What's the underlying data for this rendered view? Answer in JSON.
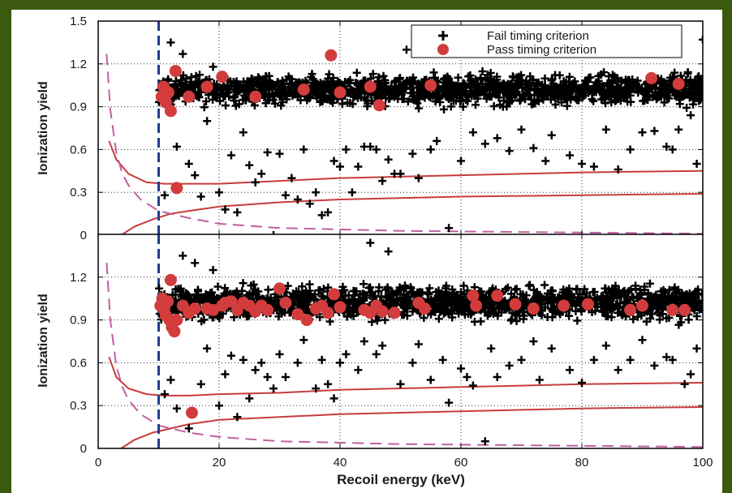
{
  "chart_data": [
    {
      "type": "scatter",
      "panel": "top",
      "ylabel": "Ionization yield",
      "xlim": [
        0,
        100
      ],
      "ylim": [
        0,
        1.5
      ],
      "xticks": [
        "0",
        "20",
        "40",
        "60",
        "80",
        "100"
      ],
      "yticks": [
        "0",
        "0.3",
        "0.6",
        "0.9",
        "1.2",
        "1.5"
      ],
      "grid": true,
      "legend": {
        "placement": "top-right",
        "entries": [
          {
            "label": "Fail timing criterion",
            "marker": "plus",
            "color": "#000000"
          },
          {
            "label": "Pass timing criterion",
            "marker": "circle",
            "color": "#d23c3c"
          }
        ]
      },
      "series": [
        {
          "name": "Fail timing criterion",
          "marker": "plus",
          "color": "#000000",
          "x_range": [
            10,
            100
          ],
          "band_center": 1.02,
          "band_halfwidth": 0.09,
          "points": [
            [
              12,
              1.35
            ],
            [
              14,
              1.27
            ],
            [
              19,
              1.18
            ],
            [
              22,
              0.56
            ],
            [
              25,
              0.49
            ],
            [
              27,
              0.43
            ],
            [
              30,
              0.57
            ],
            [
              32,
              0.4
            ],
            [
              34,
              0.6
            ],
            [
              35,
              0.22
            ],
            [
              37,
              0.14
            ],
            [
              38,
              0.16
            ],
            [
              39,
              0.52
            ],
            [
              40,
              0.48
            ],
            [
              41,
              0.6
            ],
            [
              43,
              0.48
            ],
            [
              44,
              0.62
            ],
            [
              46,
              0.6
            ],
            [
              48,
              0.53
            ],
            [
              50,
              0.43
            ],
            [
              51,
              1.3
            ],
            [
              52,
              0.57
            ],
            [
              55,
              0.6
            ],
            [
              58,
              0.05
            ],
            [
              60,
              0.52
            ],
            [
              62,
              0.72
            ],
            [
              66,
              0.68
            ],
            [
              70,
              0.74
            ],
            [
              72,
              0.61
            ],
            [
              75,
              0.7
            ],
            [
              78,
              0.56
            ],
            [
              80,
              0.5
            ],
            [
              84,
              0.74
            ],
            [
              88,
              0.6
            ],
            [
              92,
              0.73
            ],
            [
              95,
              0.6
            ],
            [
              98,
              0.84
            ],
            [
              100,
              1.37
            ],
            [
              11,
              0.28
            ],
            [
              15,
              0.5
            ],
            [
              17,
              0.27
            ],
            [
              20,
              0.3
            ],
            [
              24,
              0.72
            ],
            [
              28,
              0.58
            ],
            [
              13,
              0.62
            ],
            [
              16,
              0.42
            ],
            [
              18,
              0.8
            ],
            [
              21,
              0.18
            ],
            [
              23,
              0.16
            ],
            [
              26,
              0.37
            ],
            [
              29,
              0.0
            ],
            [
              31,
              0.28
            ],
            [
              33,
              0.25
            ],
            [
              36,
              0.3
            ],
            [
              42,
              0.3
            ],
            [
              45,
              0.62
            ],
            [
              47,
              0.38
            ],
            [
              49,
              0.43
            ],
            [
              53,
              0.4
            ],
            [
              56,
              0.66
            ],
            [
              64,
              0.64
            ],
            [
              68,
              0.59
            ],
            [
              74,
              0.52
            ],
            [
              82,
              0.48
            ],
            [
              86,
              0.46
            ],
            [
              90,
              0.72
            ],
            [
              94,
              0.62
            ],
            [
              96,
              0.74
            ],
            [
              99,
              0.5
            ]
          ]
        },
        {
          "name": "Pass timing criterion",
          "marker": "circle",
          "color": "#d23c3c",
          "points": [
            [
              10.5,
              0.97
            ],
            [
              10.8,
              1.04
            ],
            [
              11.2,
              0.93
            ],
            [
              11.6,
              1.0
            ],
            [
              12,
              0.87
            ],
            [
              12.8,
              1.15
            ],
            [
              13,
              0.33
            ],
            [
              15,
              0.97
            ],
            [
              18,
              1.04
            ],
            [
              20.5,
              1.11
            ],
            [
              26,
              0.97
            ],
            [
              34,
              1.02
            ],
            [
              38.5,
              1.26
            ],
            [
              40,
              1.0
            ],
            [
              45,
              1.04
            ],
            [
              46.5,
              0.91
            ],
            [
              55,
              1.05
            ],
            [
              91.5,
              1.1
            ],
            [
              96,
              1.06
            ]
          ]
        },
        {
          "name": "",
          "style": "solid",
          "color": "#c83c3c",
          "role": "upper band",
          "x": [
            1.8,
            3,
            5,
            8,
            11,
            15,
            20,
            30,
            40,
            60,
            80,
            100
          ],
          "y": [
            0.66,
            0.53,
            0.43,
            0.37,
            0.36,
            0.36,
            0.36,
            0.38,
            0.4,
            0.42,
            0.44,
            0.45
          ]
        },
        {
          "name": "",
          "style": "solid",
          "color": "#c83c3c",
          "role": "lower band",
          "x": [
            3.8,
            6,
            9,
            12,
            15,
            20,
            30,
            40,
            60,
            80,
            100
          ],
          "y": [
            0.0,
            0.06,
            0.11,
            0.15,
            0.17,
            0.2,
            0.23,
            0.25,
            0.27,
            0.28,
            0.29
          ]
        },
        {
          "name": "",
          "style": "dashed",
          "color": "#c060a0",
          "role": "threshold curve",
          "x": [
            1.4,
            2,
            3,
            4,
            5,
            7,
            10,
            15,
            20,
            30,
            50,
            100
          ],
          "y": [
            1.27,
            0.88,
            0.58,
            0.43,
            0.35,
            0.25,
            0.17,
            0.12,
            0.08,
            0.05,
            0.03,
            0.01
          ]
        },
        {
          "name": "",
          "style": "dashed",
          "color": "#1f3f8f",
          "role": "energy threshold",
          "x": [
            10,
            10
          ],
          "y": [
            0,
            1.5
          ]
        }
      ]
    },
    {
      "type": "scatter",
      "panel": "bottom",
      "ylabel": "Ionization yield",
      "xlabel": "Recoil energy (keV)",
      "xlim": [
        0,
        100
      ],
      "ylim": [
        0,
        1.5
      ],
      "xticks": [
        "0",
        "20",
        "40",
        "60",
        "80",
        "100"
      ],
      "yticks": [
        "0",
        "0.3",
        "0.6",
        "0.9",
        "1.2"
      ],
      "grid": true,
      "series": [
        {
          "name": "Fail timing criterion",
          "marker": "plus",
          "color": "#000000",
          "x_range": [
            10,
            100
          ],
          "band_center": 1.02,
          "band_halfwidth": 0.1,
          "points": [
            [
              14,
              1.35
            ],
            [
              16,
              1.3
            ],
            [
              19,
              1.25
            ],
            [
              22,
              0.65
            ],
            [
              24,
              0.62
            ],
            [
              26,
              0.55
            ],
            [
              28,
              0.5
            ],
            [
              30,
              0.66
            ],
            [
              33,
              0.6
            ],
            [
              36,
              0.42
            ],
            [
              38,
              0.45
            ],
            [
              40,
              0.6
            ],
            [
              41,
              0.66
            ],
            [
              44,
              0.75
            ],
            [
              46,
              0.66
            ],
            [
              48,
              1.38
            ],
            [
              50,
              0.45
            ],
            [
              52,
              0.6
            ],
            [
              55,
              0.48
            ],
            [
              58,
              0.32
            ],
            [
              60,
              0.56
            ],
            [
              62,
              0.44
            ],
            [
              64,
              0.05
            ],
            [
              66,
              0.5
            ],
            [
              70,
              0.62
            ],
            [
              72,
              0.75
            ],
            [
              75,
              0.7
            ],
            [
              78,
              0.55
            ],
            [
              80,
              0.46
            ],
            [
              84,
              0.72
            ],
            [
              88,
              0.62
            ],
            [
              90,
              0.76
            ],
            [
              92,
              0.58
            ],
            [
              95,
              0.62
            ],
            [
              98,
              0.52
            ],
            [
              13,
              0.28
            ],
            [
              15,
              0.14
            ],
            [
              17,
              0.45
            ],
            [
              20,
              0.3
            ],
            [
              12,
              0.48
            ],
            [
              11,
              0.38
            ],
            [
              18,
              0.7
            ],
            [
              21,
              0.52
            ],
            [
              23,
              0.22
            ],
            [
              25,
              0.35
            ],
            [
              27,
              0.6
            ],
            [
              29,
              0.42
            ],
            [
              31,
              0.5
            ],
            [
              34,
              0.76
            ],
            [
              37,
              0.62
            ],
            [
              39,
              0.35
            ],
            [
              43,
              0.55
            ],
            [
              45,
              1.44
            ],
            [
              47,
              0.72
            ],
            [
              53,
              0.73
            ],
            [
              57,
              0.62
            ],
            [
              61,
              0.5
            ],
            [
              65,
              0.7
            ],
            [
              68,
              0.58
            ],
            [
              73,
              0.48
            ],
            [
              82,
              0.62
            ],
            [
              86,
              0.55
            ],
            [
              94,
              0.64
            ],
            [
              97,
              0.45
            ],
            [
              99,
              0.7
            ]
          ]
        },
        {
          "name": "Pass timing criterion",
          "marker": "circle",
          "color": "#d23c3c",
          "points": [
            [
              10.3,
              1.0
            ],
            [
              10.6,
              1.05
            ],
            [
              10.9,
              0.97
            ],
            [
              11.2,
              0.93
            ],
            [
              11.5,
              1.03
            ],
            [
              11.8,
              0.9
            ],
            [
              12.2,
              0.85
            ],
            [
              12.6,
              0.82
            ],
            [
              12,
              1.18
            ],
            [
              13,
              0.9
            ],
            [
              14,
              1.0
            ],
            [
              15,
              0.95
            ],
            [
              15.5,
              0.25
            ],
            [
              16,
              0.98
            ],
            [
              18,
              0.98
            ],
            [
              19,
              0.97
            ],
            [
              20.5,
              1.0
            ],
            [
              21,
              1.02
            ],
            [
              22,
              1.03
            ],
            [
              23,
              0.97
            ],
            [
              24,
              1.02
            ],
            [
              25,
              1.0
            ],
            [
              26,
              0.96
            ],
            [
              27,
              1.0
            ],
            [
              28,
              0.97
            ],
            [
              30,
              1.12
            ],
            [
              31,
              1.02
            ],
            [
              33,
              0.94
            ],
            [
              34.5,
              0.9
            ],
            [
              36,
              0.98
            ],
            [
              37,
              1.0
            ],
            [
              38,
              0.95
            ],
            [
              39,
              1.08
            ],
            [
              40,
              0.99
            ],
            [
              44,
              0.97
            ],
            [
              45,
              0.95
            ],
            [
              46,
              1.0
            ],
            [
              47,
              0.96
            ],
            [
              49,
              0.95
            ],
            [
              53,
              1.02
            ],
            [
              54,
              0.98
            ],
            [
              62,
              1.07
            ],
            [
              62.5,
              1.0
            ],
            [
              66,
              1.07
            ],
            [
              69,
              1.01
            ],
            [
              72,
              0.98
            ],
            [
              77,
              1.0
            ],
            [
              81,
              1.01
            ],
            [
              88,
              0.97
            ],
            [
              90,
              1.0
            ],
            [
              95,
              0.97
            ],
            [
              97,
              0.97
            ]
          ]
        },
        {
          "name": "",
          "style": "solid",
          "color": "#c83c3c",
          "role": "upper band",
          "x": [
            1.8,
            3,
            5,
            8,
            11,
            15,
            20,
            30,
            40,
            60,
            80,
            100
          ],
          "y": [
            0.64,
            0.5,
            0.42,
            0.38,
            0.37,
            0.37,
            0.38,
            0.39,
            0.41,
            0.43,
            0.45,
            0.46
          ]
        },
        {
          "name": "",
          "style": "solid",
          "color": "#c83c3c",
          "role": "lower band",
          "x": [
            3.8,
            6,
            9,
            12,
            15,
            20,
            30,
            40,
            60,
            80,
            100
          ],
          "y": [
            0.0,
            0.06,
            0.11,
            0.14,
            0.17,
            0.2,
            0.22,
            0.24,
            0.26,
            0.28,
            0.29
          ]
        },
        {
          "name": "",
          "style": "dashed",
          "color": "#c060a0",
          "role": "threshold curve",
          "x": [
            1.4,
            2,
            3,
            4,
            5,
            7,
            10,
            15,
            20,
            30,
            50,
            100
          ],
          "y": [
            1.3,
            0.9,
            0.58,
            0.43,
            0.34,
            0.24,
            0.16,
            0.11,
            0.08,
            0.05,
            0.03,
            0.01
          ]
        },
        {
          "name": "",
          "style": "dashed",
          "color": "#1f3f8f",
          "role": "energy threshold",
          "x": [
            10,
            10
          ],
          "y": [
            0,
            1.5
          ]
        }
      ]
    }
  ]
}
